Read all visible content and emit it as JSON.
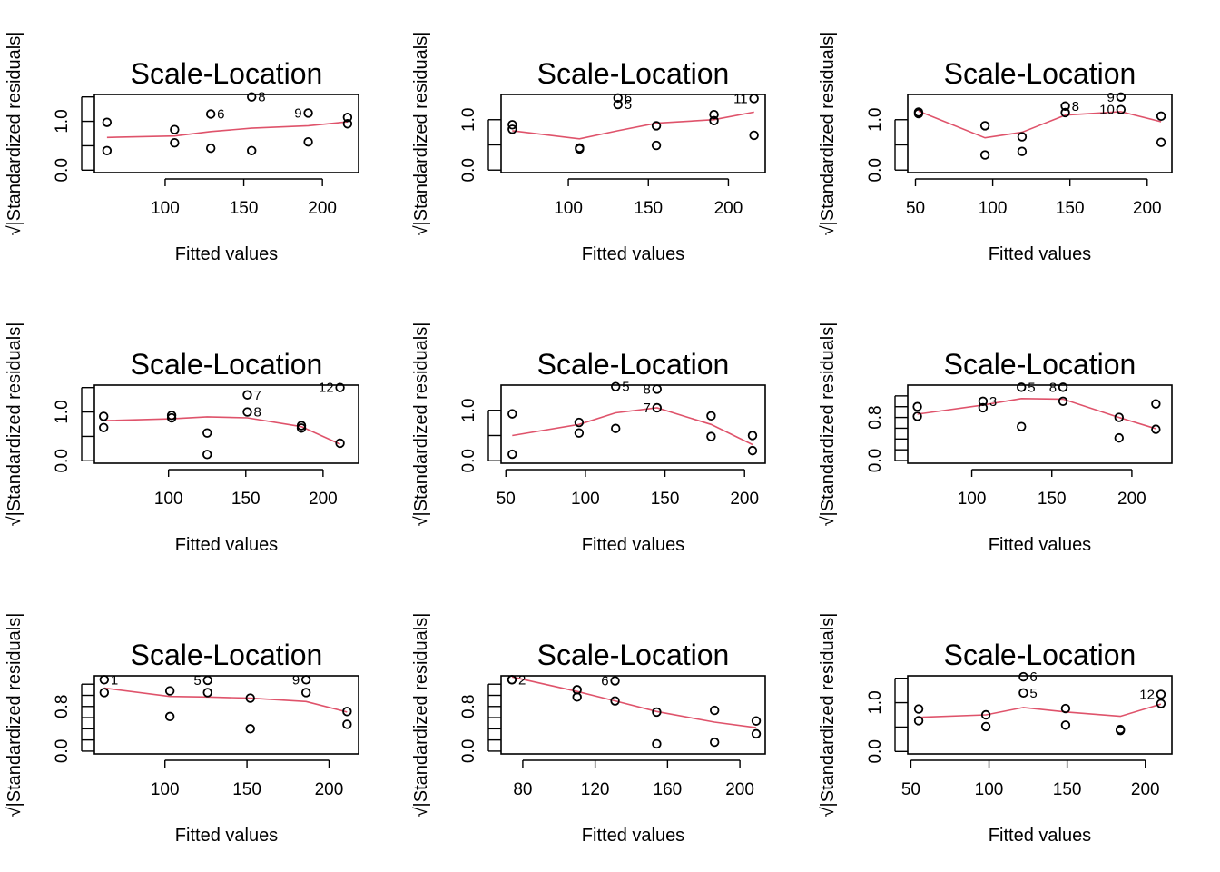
{
  "chart_data": [
    {
      "type": "scatter",
      "title": "Scale-Location",
      "xlabel": "Fitted values",
      "ylabel": "√|Standardized residuals|",
      "xlim": [
        55,
        223
      ],
      "ylim": [
        -0.05,
        1.55
      ],
      "xticks": [
        {
          "v": 100,
          "label": "100"
        },
        {
          "v": 150,
          "label": "150"
        },
        {
          "v": 200,
          "label": "200"
        }
      ],
      "yticks": [
        {
          "v": 0,
          "label": "0.0"
        },
        {
          "v": 1,
          "label": "1.0"
        }
      ],
      "yminor": [
        0.5,
        1.5
      ],
      "points": [
        [
          63,
          0.98
        ],
        [
          63,
          0.4
        ],
        [
          106,
          0.83
        ],
        [
          106,
          0.56
        ],
        [
          129,
          1.15
        ],
        [
          129,
          0.45
        ],
        [
          155,
          1.5
        ],
        [
          155,
          0.4
        ],
        [
          191,
          1.17
        ],
        [
          191,
          0.58
        ],
        [
          216,
          1.08
        ],
        [
          216,
          0.95
        ]
      ],
      "labels": [
        {
          "x": 155,
          "y": 1.5,
          "text": "8",
          "side": "right"
        },
        {
          "x": 129,
          "y": 1.15,
          "text": "6",
          "side": "right"
        },
        {
          "x": 191,
          "y": 1.17,
          "text": "9",
          "side": "left"
        }
      ],
      "smooth": [
        [
          63,
          0.67
        ],
        [
          106,
          0.7
        ],
        [
          129,
          0.79
        ],
        [
          155,
          0.86
        ],
        [
          191,
          0.91
        ],
        [
          216,
          0.99
        ]
      ]
    },
    {
      "type": "scatter",
      "title": "Scale-Location",
      "xlabel": "Fitted values",
      "ylabel": "√|Standardized residuals|",
      "xlim": [
        58,
        223
      ],
      "ylim": [
        -0.05,
        1.5
      ],
      "xticks": [
        {
          "v": 100,
          "label": "100"
        },
        {
          "v": 150,
          "label": "150"
        },
        {
          "v": 200,
          "label": "200"
        }
      ],
      "yticks": [
        {
          "v": 0,
          "label": "0.0"
        },
        {
          "v": 1,
          "label": "1.0"
        }
      ],
      "yminor": [
        0.5
      ],
      "points": [
        [
          65,
          0.9
        ],
        [
          65,
          0.81
        ],
        [
          107,
          0.44
        ],
        [
          107,
          0.42
        ],
        [
          131,
          1.43
        ],
        [
          131,
          1.3
        ],
        [
          155,
          0.88
        ],
        [
          155,
          0.49
        ],
        [
          191,
          1.1
        ],
        [
          191,
          0.98
        ],
        [
          216,
          1.42
        ],
        [
          216,
          0.69
        ]
      ],
      "labels": [
        {
          "x": 131,
          "y": 1.43,
          "text": "6",
          "side": "right"
        },
        {
          "x": 131,
          "y": 1.3,
          "text": "5",
          "side": "right"
        },
        {
          "x": 216,
          "y": 1.42,
          "text": "11",
          "side": "left"
        }
      ],
      "smooth": [
        [
          65,
          0.78
        ],
        [
          107,
          0.62
        ],
        [
          131,
          0.78
        ],
        [
          155,
          0.93
        ],
        [
          191,
          1.0
        ],
        [
          216,
          1.15
        ]
      ]
    },
    {
      "type": "scatter",
      "title": "Scale-Location",
      "xlabel": "Fitted values",
      "ylabel": "√|Standardized residuals|",
      "xlim": [
        45,
        216
      ],
      "ylim": [
        -0.05,
        1.5
      ],
      "xticks": [
        {
          "v": 50,
          "label": "50"
        },
        {
          "v": 100,
          "label": "100"
        },
        {
          "v": 150,
          "label": "150"
        },
        {
          "v": 200,
          "label": "200"
        }
      ],
      "yticks": [
        {
          "v": 0,
          "label": "0.0"
        },
        {
          "v": 1,
          "label": "1.0"
        }
      ],
      "yminor": [
        0.5
      ],
      "points": [
        [
          52,
          1.15
        ],
        [
          52,
          1.12
        ],
        [
          95,
          0.88
        ],
        [
          95,
          0.3
        ],
        [
          119,
          0.66
        ],
        [
          119,
          0.37
        ],
        [
          147,
          1.27
        ],
        [
          147,
          1.14
        ],
        [
          183,
          1.45
        ],
        [
          183,
          1.2
        ],
        [
          209,
          1.07
        ],
        [
          209,
          0.55
        ]
      ],
      "labels": [
        {
          "x": 147,
          "y": 1.27,
          "text": "8",
          "side": "right"
        },
        {
          "x": 183,
          "y": 1.45,
          "text": "9",
          "side": "left"
        },
        {
          "x": 183,
          "y": 1.2,
          "text": "10",
          "side": "left"
        }
      ],
      "smooth": [
        [
          52,
          1.17
        ],
        [
          95,
          0.64
        ],
        [
          119,
          0.75
        ],
        [
          147,
          1.09
        ],
        [
          183,
          1.16
        ],
        [
          209,
          0.96
        ]
      ]
    },
    {
      "type": "scatter",
      "title": "Scale-Location",
      "xlabel": "Fitted values",
      "ylabel": "√|Standardized residuals|",
      "xlim": [
        52,
        223
      ],
      "ylim": [
        -0.05,
        1.55
      ],
      "xticks": [
        {
          "v": 100,
          "label": "100"
        },
        {
          "v": 150,
          "label": "150"
        },
        {
          "v": 200,
          "label": "200"
        }
      ],
      "yticks": [
        {
          "v": 0,
          "label": "0.0"
        },
        {
          "v": 1,
          "label": "1.0"
        }
      ],
      "yminor": [
        0.5,
        1.5
      ],
      "points": [
        [
          58,
          0.91
        ],
        [
          58,
          0.68
        ],
        [
          102,
          0.93
        ],
        [
          102,
          0.88
        ],
        [
          125,
          0.57
        ],
        [
          125,
          0.13
        ],
        [
          151,
          1.35
        ],
        [
          151,
          1.0
        ],
        [
          186,
          0.72
        ],
        [
          186,
          0.67
        ],
        [
          211,
          1.5
        ],
        [
          211,
          0.36
        ]
      ],
      "labels": [
        {
          "x": 151,
          "y": 1.35,
          "text": "7",
          "side": "right"
        },
        {
          "x": 151,
          "y": 1.0,
          "text": "8",
          "side": "right"
        },
        {
          "x": 211,
          "y": 1.5,
          "text": "12",
          "side": "left"
        }
      ],
      "smooth": [
        [
          58,
          0.82
        ],
        [
          102,
          0.86
        ],
        [
          125,
          0.9
        ],
        [
          151,
          0.88
        ],
        [
          186,
          0.7
        ],
        [
          211,
          0.34
        ]
      ]
    },
    {
      "type": "scatter",
      "title": "Scale-Location",
      "xlabel": "Fitted values",
      "ylabel": "√|Standardized residuals|",
      "xlim": [
        47,
        213
      ],
      "ylim": [
        -0.05,
        1.5
      ],
      "xticks": [
        {
          "v": 50,
          "label": "50"
        },
        {
          "v": 100,
          "label": "100"
        },
        {
          "v": 150,
          "label": "150"
        },
        {
          "v": 200,
          "label": "200"
        }
      ],
      "yticks": [
        {
          "v": 0,
          "label": "0.0"
        },
        {
          "v": 1,
          "label": "1.0"
        }
      ],
      "yminor": [
        0.5
      ],
      "points": [
        [
          54,
          0.93
        ],
        [
          54,
          0.13
        ],
        [
          96,
          0.76
        ],
        [
          96,
          0.55
        ],
        [
          119,
          1.47
        ],
        [
          119,
          0.64
        ],
        [
          145,
          1.42
        ],
        [
          145,
          1.05
        ],
        [
          179,
          0.89
        ],
        [
          179,
          0.48
        ],
        [
          205,
          0.5
        ],
        [
          205,
          0.2
        ]
      ],
      "labels": [
        {
          "x": 119,
          "y": 1.47,
          "text": "5",
          "side": "right"
        },
        {
          "x": 145,
          "y": 1.42,
          "text": "8",
          "side": "left"
        },
        {
          "x": 145,
          "y": 1.05,
          "text": "7",
          "side": "left"
        }
      ],
      "smooth": [
        [
          54,
          0.5
        ],
        [
          96,
          0.72
        ],
        [
          119,
          0.95
        ],
        [
          145,
          1.05
        ],
        [
          179,
          0.72
        ],
        [
          205,
          0.32
        ]
      ]
    },
    {
      "type": "scatter",
      "title": "Scale-Location",
      "xlabel": "Fitted values",
      "ylabel": "√|Standardized residuals|",
      "xlim": [
        60,
        225
      ],
      "ylim": [
        -0.05,
        1.4
      ],
      "xticks": [
        {
          "v": 100,
          "label": "100"
        },
        {
          "v": 150,
          "label": "150"
        },
        {
          "v": 200,
          "label": "200"
        }
      ],
      "yticks": [
        {
          "v": 0,
          "label": "0.0"
        },
        {
          "v": 0.8,
          "label": "0.8"
        }
      ],
      "yminor": [
        0.2,
        0.4,
        0.6,
        1.0,
        1.2
      ],
      "points": [
        [
          66,
          1.0
        ],
        [
          66,
          0.82
        ],
        [
          107,
          1.1
        ],
        [
          107,
          0.98
        ],
        [
          131,
          1.36
        ],
        [
          131,
          0.63
        ],
        [
          157,
          1.36
        ],
        [
          157,
          1.1
        ],
        [
          192,
          0.8
        ],
        [
          192,
          0.42
        ],
        [
          215,
          1.05
        ],
        [
          215,
          0.58
        ]
      ],
      "labels": [
        {
          "x": 107,
          "y": 1.1,
          "text": "3",
          "side": "right"
        },
        {
          "x": 131,
          "y": 1.36,
          "text": "5",
          "side": "right"
        },
        {
          "x": 157,
          "y": 1.36,
          "text": "8",
          "side": "left"
        }
      ],
      "smooth": [
        [
          66,
          0.86
        ],
        [
          107,
          1.03
        ],
        [
          131,
          1.15
        ],
        [
          157,
          1.14
        ],
        [
          192,
          0.8
        ],
        [
          215,
          0.59
        ]
      ]
    },
    {
      "type": "scatter",
      "title": "Scale-Location",
      "xlabel": "Fitted values",
      "ylabel": "√|Standardized residuals|",
      "xlim": [
        57,
        218
      ],
      "ylim": [
        -0.05,
        1.35
      ],
      "xticks": [
        {
          "v": 100,
          "label": "100"
        },
        {
          "v": 150,
          "label": "150"
        },
        {
          "v": 200,
          "label": "200"
        }
      ],
      "yticks": [
        {
          "v": 0,
          "label": "0.0"
        },
        {
          "v": 0.8,
          "label": "0.8"
        }
      ],
      "yminor": [
        0.2,
        0.4,
        0.6,
        1.0,
        1.2
      ],
      "points": [
        [
          63,
          1.28
        ],
        [
          63,
          1.05
        ],
        [
          103,
          1.08
        ],
        [
          103,
          0.62
        ],
        [
          126,
          1.27
        ],
        [
          126,
          1.05
        ],
        [
          152,
          0.95
        ],
        [
          152,
          0.4
        ],
        [
          186,
          1.28
        ],
        [
          186,
          1.05
        ],
        [
          211,
          0.71
        ],
        [
          211,
          0.48
        ]
      ],
      "labels": [
        {
          "x": 63,
          "y": 1.28,
          "text": "1",
          "side": "right"
        },
        {
          "x": 126,
          "y": 1.27,
          "text": "5",
          "side": "left"
        },
        {
          "x": 186,
          "y": 1.28,
          "text": "9",
          "side": "left"
        }
      ],
      "smooth": [
        [
          63,
          1.13
        ],
        [
          103,
          0.98
        ],
        [
          126,
          0.97
        ],
        [
          152,
          0.95
        ],
        [
          186,
          0.89
        ],
        [
          211,
          0.7
        ]
      ]
    },
    {
      "type": "scatter",
      "title": "Scale-Location",
      "xlabel": "Fitted values",
      "ylabel": "√|Standardized residuals|",
      "xlim": [
        68,
        214
      ],
      "ylim": [
        -0.05,
        1.35
      ],
      "xticks": [
        {
          "v": 80,
          "label": "80"
        },
        {
          "v": 120,
          "label": "120"
        },
        {
          "v": 160,
          "label": "160"
        },
        {
          "v": 200,
          "label": "200"
        }
      ],
      "yticks": [
        {
          "v": 0,
          "label": "0.0"
        },
        {
          "v": 0.8,
          "label": "0.8"
        }
      ],
      "yminor": [
        0.2,
        0.4,
        0.6,
        1.0,
        1.2
      ],
      "points": [
        [
          74,
          1.28
        ],
        [
          74,
          1.28
        ],
        [
          110,
          1.1
        ],
        [
          110,
          0.97
        ],
        [
          131,
          1.26
        ],
        [
          131,
          0.9
        ],
        [
          154,
          0.7
        ],
        [
          154,
          0.13
        ],
        [
          186,
          0.73
        ],
        [
          186,
          0.16
        ],
        [
          209,
          0.54
        ],
        [
          209,
          0.31
        ]
      ],
      "labels": [
        {
          "x": 74,
          "y": 1.28,
          "text": "2",
          "side": "right"
        },
        {
          "x": 131,
          "y": 1.26,
          "text": "6",
          "side": "left"
        }
      ],
      "smooth": [
        [
          74,
          1.33
        ],
        [
          110,
          1.07
        ],
        [
          131,
          0.9
        ],
        [
          154,
          0.71
        ],
        [
          186,
          0.52
        ],
        [
          209,
          0.42
        ]
      ]
    },
    {
      "type": "scatter",
      "title": "Scale-Location",
      "xlabel": "Fitted values",
      "ylabel": "√|Standardized residuals|",
      "xlim": [
        48,
        217
      ],
      "ylim": [
        -0.05,
        1.55
      ],
      "xticks": [
        {
          "v": 50,
          "label": "50"
        },
        {
          "v": 100,
          "label": "100"
        },
        {
          "v": 150,
          "label": "150"
        },
        {
          "v": 200,
          "label": "200"
        }
      ],
      "yticks": [
        {
          "v": 0,
          "label": "0.0"
        },
        {
          "v": 1,
          "label": "1.0"
        }
      ],
      "yminor": [
        0.5,
        1.5
      ],
      "points": [
        [
          55,
          0.87
        ],
        [
          55,
          0.63
        ],
        [
          98,
          0.75
        ],
        [
          98,
          0.51
        ],
        [
          122,
          1.53
        ],
        [
          122,
          1.2
        ],
        [
          149,
          0.88
        ],
        [
          149,
          0.54
        ],
        [
          184,
          0.45
        ],
        [
          184,
          0.43
        ],
        [
          210,
          1.17
        ],
        [
          210,
          0.98
        ]
      ],
      "labels": [
        {
          "x": 122,
          "y": 1.53,
          "text": "6",
          "side": "right"
        },
        {
          "x": 122,
          "y": 1.2,
          "text": "5",
          "side": "right"
        },
        {
          "x": 210,
          "y": 1.17,
          "text": "12",
          "side": "left"
        }
      ],
      "smooth": [
        [
          55,
          0.7
        ],
        [
          98,
          0.75
        ],
        [
          122,
          0.9
        ],
        [
          149,
          0.81
        ],
        [
          184,
          0.72
        ],
        [
          210,
          0.97
        ]
      ]
    }
  ]
}
